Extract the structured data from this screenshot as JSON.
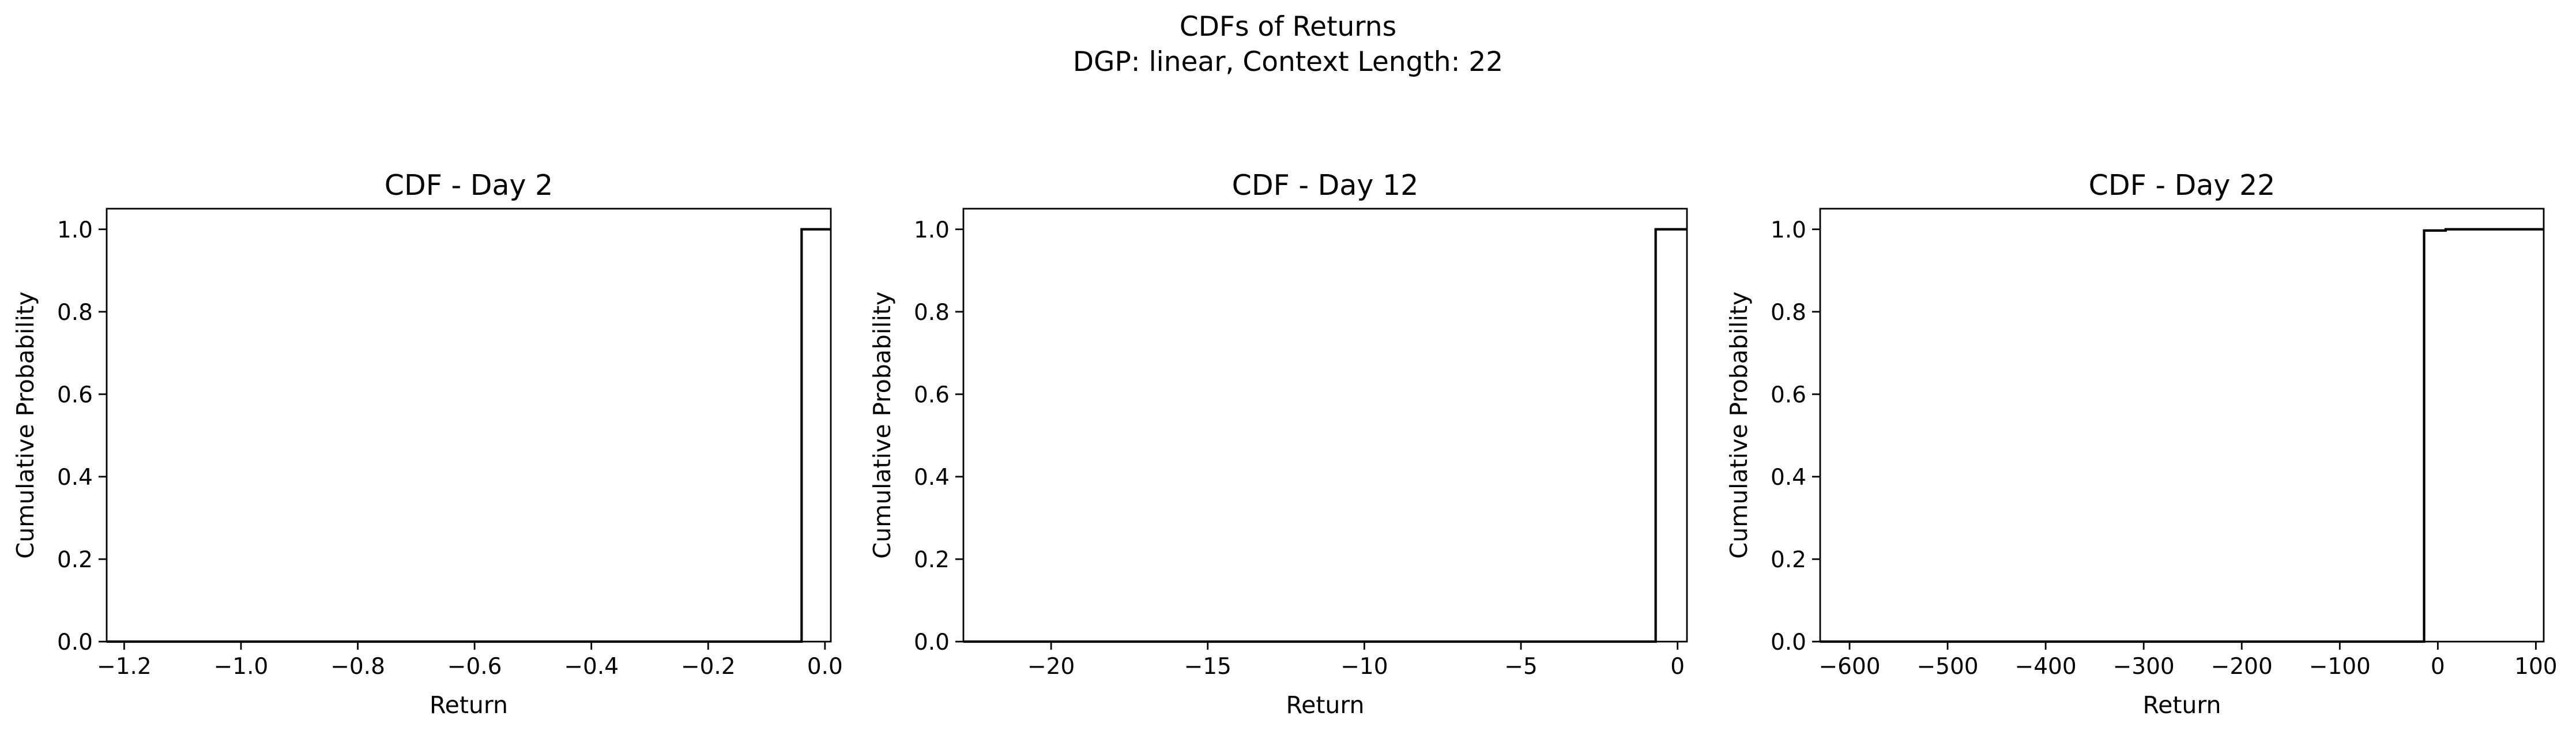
{
  "figure": {
    "suptitle": [
      "CDFs of Returns",
      "DGP: linear, Context Length: 22"
    ]
  },
  "chart_data": [
    {
      "type": "line",
      "title": "CDF - Day 2",
      "xlabel": "Return",
      "ylabel": "Cumulative Probability",
      "xlim": [
        -1.23,
        0.01
      ],
      "ylim": [
        0,
        1.05
      ],
      "xticks": [
        -1.2,
        -1.0,
        -0.8,
        -0.6,
        -0.4,
        -0.2,
        0.0
      ],
      "xtick_labels": [
        "−1.2",
        "−1.0",
        "−0.8",
        "−0.6",
        "−0.4",
        "−0.2",
        "0.0"
      ],
      "yticks": [
        0.0,
        0.2,
        0.4,
        0.6,
        0.8,
        1.0
      ],
      "ytick_labels": [
        "0.0",
        "0.2",
        "0.4",
        "0.6",
        "0.8",
        "1.0"
      ],
      "grid": false,
      "step": true,
      "x": [
        -1.23,
        -0.04,
        -0.04,
        0.01
      ],
      "y": [
        0.0,
        0.0,
        1.0,
        1.0
      ]
    },
    {
      "type": "line",
      "title": "CDF - Day 12",
      "xlabel": "Return",
      "ylabel": "Cumulative Probability",
      "xlim": [
        -22.8,
        0.3
      ],
      "ylim": [
        0,
        1.05
      ],
      "xticks": [
        -20,
        -15,
        -10,
        -5,
        0
      ],
      "xtick_labels": [
        "−20",
        "−15",
        "−10",
        "−5",
        "0"
      ],
      "yticks": [
        0.0,
        0.2,
        0.4,
        0.6,
        0.8,
        1.0
      ],
      "ytick_labels": [
        "0.0",
        "0.2",
        "0.4",
        "0.6",
        "0.8",
        "1.0"
      ],
      "grid": false,
      "step": true,
      "x": [
        -22.8,
        -0.7,
        -0.7,
        0.3
      ],
      "y": [
        0.0,
        0.0,
        1.0,
        1.0
      ]
    },
    {
      "type": "line",
      "title": "CDF - Day 22",
      "xlabel": "Return",
      "ylabel": "Cumulative Probability",
      "xlim": [
        -630,
        108
      ],
      "ylim": [
        0,
        1.05
      ],
      "xticks": [
        -600,
        -500,
        -400,
        -300,
        -200,
        -100,
        0,
        100
      ],
      "xtick_labels": [
        "−600",
        "−500",
        "−400",
        "−300",
        "−200",
        "−100",
        "0",
        "100"
      ],
      "yticks": [
        0.0,
        0.2,
        0.4,
        0.6,
        0.8,
        1.0
      ],
      "ytick_labels": [
        "0.0",
        "0.2",
        "0.4",
        "0.6",
        "0.8",
        "1.0"
      ],
      "grid": false,
      "step": true,
      "x": [
        -630,
        -14,
        -14,
        8,
        8,
        108
      ],
      "y": [
        0.0,
        0.0,
        0.997,
        0.997,
        1.0,
        1.0
      ]
    }
  ]
}
